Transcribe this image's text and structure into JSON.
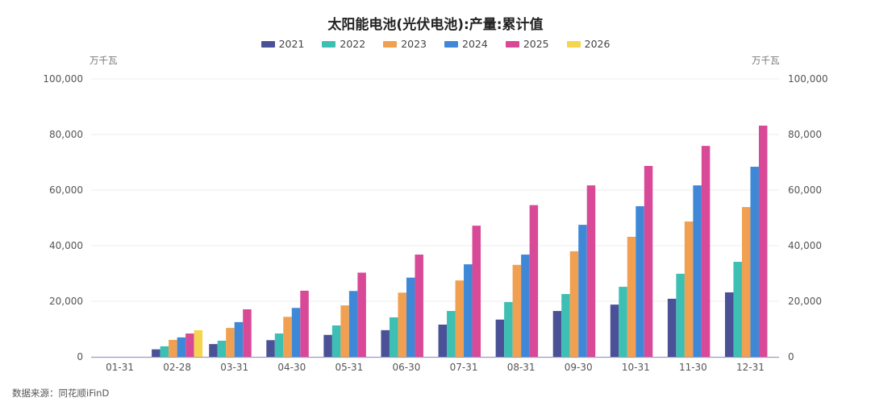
{
  "chart_data": {
    "type": "bar",
    "title": "太阳能电池(光伏电池):产量:累计值",
    "ylabel_left": "万千瓦",
    "ylabel_right": "万千瓦",
    "xlabel": "",
    "ylim": [
      0,
      100000
    ],
    "yticks": [
      "0",
      "20,000",
      "40,000",
      "60,000",
      "80,000",
      "100,000"
    ],
    "grid": true,
    "legend_position": "top",
    "categories": [
      "01-31",
      "02-28",
      "03-31",
      "04-30",
      "05-31",
      "06-30",
      "07-31",
      "08-31",
      "09-30",
      "10-31",
      "11-30",
      "12-31"
    ],
    "series": [
      {
        "name": "2021",
        "color": "#4b5197",
        "values": [
          null,
          2700,
          4600,
          6000,
          7900,
          9600,
          11600,
          13400,
          16500,
          18800,
          20900,
          23200
        ]
      },
      {
        "name": "2022",
        "color": "#3dbfb3",
        "values": [
          null,
          3800,
          5800,
          8400,
          11300,
          14200,
          16500,
          19700,
          22600,
          25200,
          29900,
          34200
        ]
      },
      {
        "name": "2023",
        "color": "#f0a050",
        "values": [
          null,
          6100,
          10400,
          14400,
          18500,
          23100,
          27500,
          33100,
          38000,
          43200,
          48700,
          53900
        ]
      },
      {
        "name": "2024",
        "color": "#3f88d8",
        "values": [
          null,
          7000,
          12500,
          17600,
          23700,
          28500,
          33300,
          36800,
          47500,
          54200,
          61700,
          68400
        ]
      },
      {
        "name": "2025",
        "color": "#d84a98",
        "values": [
          null,
          8400,
          17100,
          23800,
          30300,
          36800,
          47200,
          54600,
          61700,
          68700,
          75900,
          83200
        ]
      },
      {
        "name": "2026",
        "color": "#f5d550",
        "values": [
          null,
          9600,
          null,
          null,
          null,
          null,
          null,
          null,
          null,
          null,
          null,
          null
        ]
      }
    ]
  },
  "source_note": "数据来源：同花顺iFinD"
}
